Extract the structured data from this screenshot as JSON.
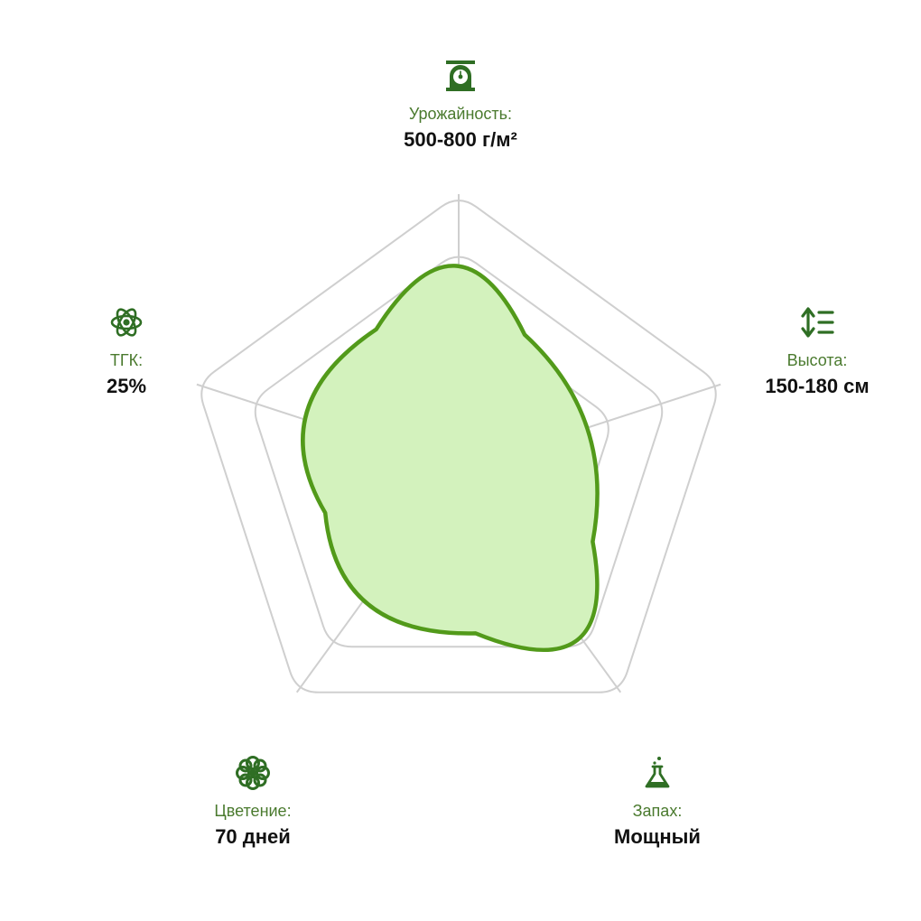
{
  "colors": {
    "grid": "#cfcfcf",
    "fill": "#d3f2bd",
    "stroke": "#529a1a",
    "icon": "#2f6e24",
    "label": "#4a7a2e"
  },
  "chart_data": {
    "type": "radar",
    "levels": 5,
    "axes": [
      {
        "key": "yield",
        "label": "Урожайность:",
        "value": "500-800 г/м²",
        "icon": "scale-icon",
        "score": 0.98
      },
      {
        "key": "height",
        "label": "Высота:",
        "value": "150-180 см",
        "icon": "height-icon",
        "score": 0.6
      },
      {
        "key": "aroma",
        "label": "Запах:",
        "value": "Мощный",
        "icon": "flask-icon",
        "score": 1.0
      },
      {
        "key": "flowering",
        "label": "Цветение:",
        "value": "70 дней",
        "icon": "flower-icon",
        "score": 0.75
      },
      {
        "key": "thc",
        "label": "ТГК:",
        "value": "25%",
        "icon": "atom-icon",
        "score": 0.75
      }
    ]
  }
}
